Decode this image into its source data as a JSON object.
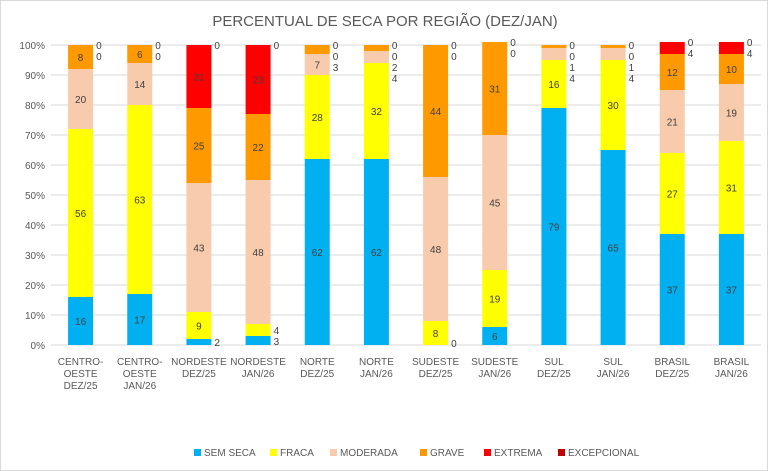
{
  "chart_data": {
    "type": "bar",
    "stacked": true,
    "title": "PERCENTUAL DE SECA POR REGIÃO (DEZ/JAN)",
    "categories": [
      "CENTRO-OESTE DEZ/25",
      "CENTRO-OESTE JAN/26",
      "NORDESTE DEZ/25",
      "NORDESTE JAN/26",
      "NORTE DEZ/25",
      "NORTE JAN/26",
      "SUDESTE DEZ/25",
      "SUDESTE JAN/26",
      "SUL DEZ/25",
      "SUL JAN/26",
      "BRASIL DEZ/25",
      "BRASIL JAN/26"
    ],
    "series": [
      {
        "name": "SEM SECA",
        "color": "#00B0F0",
        "values": [
          16,
          17,
          2,
          3,
          62,
          62,
          0,
          6,
          79,
          65,
          37,
          37
        ]
      },
      {
        "name": "FRACA",
        "color": "#FFFF00",
        "values": [
          56,
          63,
          9,
          4,
          28,
          32,
          8,
          19,
          16,
          30,
          27,
          31
        ]
      },
      {
        "name": "MODERADA",
        "color": "#F8CBAD",
        "values": [
          20,
          14,
          43,
          48,
          7,
          4,
          48,
          45,
          4,
          4,
          21,
          19
        ]
      },
      {
        "name": "GRAVE",
        "color": "#FF9900",
        "values": [
          8,
          6,
          25,
          22,
          3,
          2,
          44,
          31,
          1,
          1,
          12,
          10
        ]
      },
      {
        "name": "EXTREMA",
        "color": "#FF0000",
        "values": [
          0,
          0,
          21,
          23,
          0,
          0,
          0,
          0,
          0,
          0,
          4,
          4
        ]
      },
      {
        "name": "EXCEPCIONAL",
        "color": "#C00000",
        "values": [
          0,
          0,
          0,
          0,
          0,
          0,
          0,
          0,
          0,
          0,
          0,
          0
        ]
      }
    ],
    "yticks": [
      "0%",
      "10%",
      "20%",
      "30%",
      "40%",
      "50%",
      "60%",
      "70%",
      "80%",
      "90%",
      "100%"
    ],
    "ylim": [
      0,
      100
    ],
    "grid": true,
    "legend": "bottom"
  }
}
